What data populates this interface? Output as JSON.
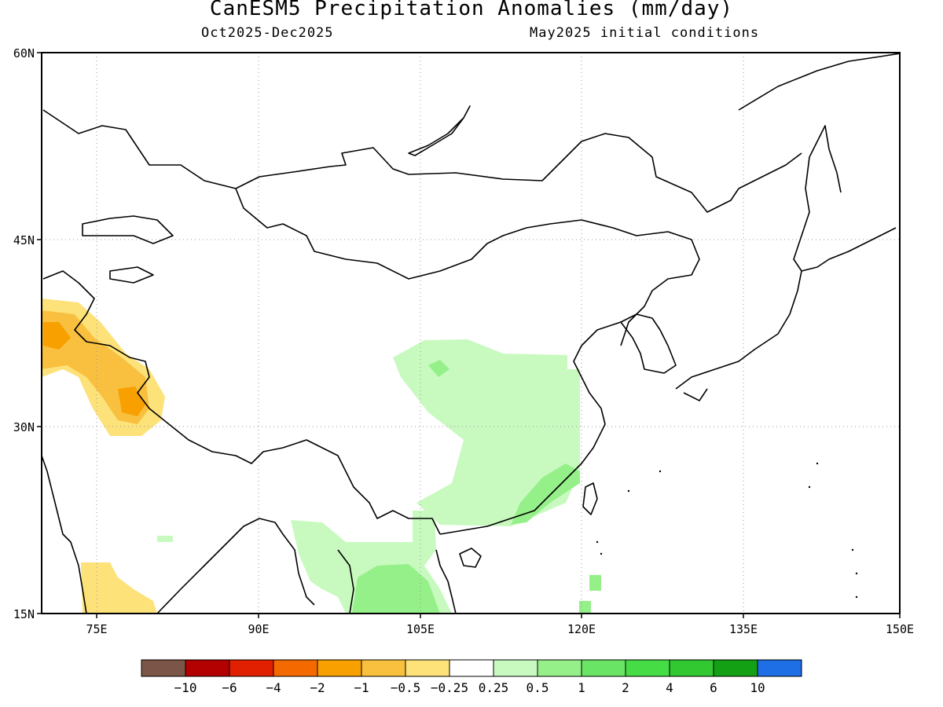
{
  "title": "CanESM5 Precipitation Anomalies (mm/day)",
  "period": "Oct2025-Dec2025",
  "init": "May2025 initial conditions",
  "lat_labels": [
    "60N",
    "45N",
    "30N",
    "15N"
  ],
  "lon_labels": [
    "75E",
    "90E",
    "105E",
    "120E",
    "135E",
    "150E"
  ],
  "colorbar": {
    "colors": [
      "#7b5648",
      "#b30000",
      "#e02000",
      "#f56a00",
      "#f8a000",
      "#f9c040",
      "#fde27a",
      "#ffffff",
      "#c8fac0",
      "#96f08a",
      "#6ae464",
      "#46dc46",
      "#32c832",
      "#14a014",
      "#1e6ee6"
    ],
    "labels": [
      "-10",
      "-6",
      "-4",
      "-2",
      "-1",
      "-0.5",
      "-0.25",
      "0.25",
      "0.5",
      "1",
      "2",
      "4",
      "6",
      "10"
    ]
  }
}
